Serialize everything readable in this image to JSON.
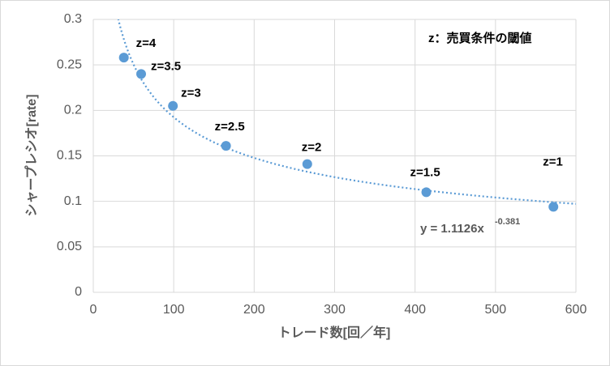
{
  "chart_data": {
    "type": "scatter",
    "annotation": "z：売買条件の閾値",
    "x_label": "トレード数[回／年]",
    "y_label": "シャープレシオ[rate]",
    "series": [
      {
        "color": "#5b9bd5",
        "x": [
          38,
          59.5,
          99,
          165,
          266,
          414,
          572
        ],
        "values": [
          0.258,
          0.24,
          0.205,
          0.161,
          0.141,
          0.11,
          0.094
        ],
        "point_labels": [
          "z=4",
          "z=3.5",
          "z=3",
          "z=2.5",
          "z=2",
          "z=1.5",
          "z=1"
        ]
      }
    ],
    "trendline": {
      "type": "power",
      "a": 1.1126,
      "b": -0.381,
      "color": "#5b9bd5",
      "equation": "y = 1.1126x",
      "exponent_label": "-0.381"
    },
    "xlim": [
      0,
      600
    ],
    "xticks": [
      0,
      100,
      200,
      300,
      400,
      500,
      600
    ],
    "ylim": [
      0,
      0.3
    ],
    "yticks": [
      0,
      0.05,
      0.1,
      0.15,
      0.2,
      0.25,
      0.3
    ],
    "grid": true
  }
}
